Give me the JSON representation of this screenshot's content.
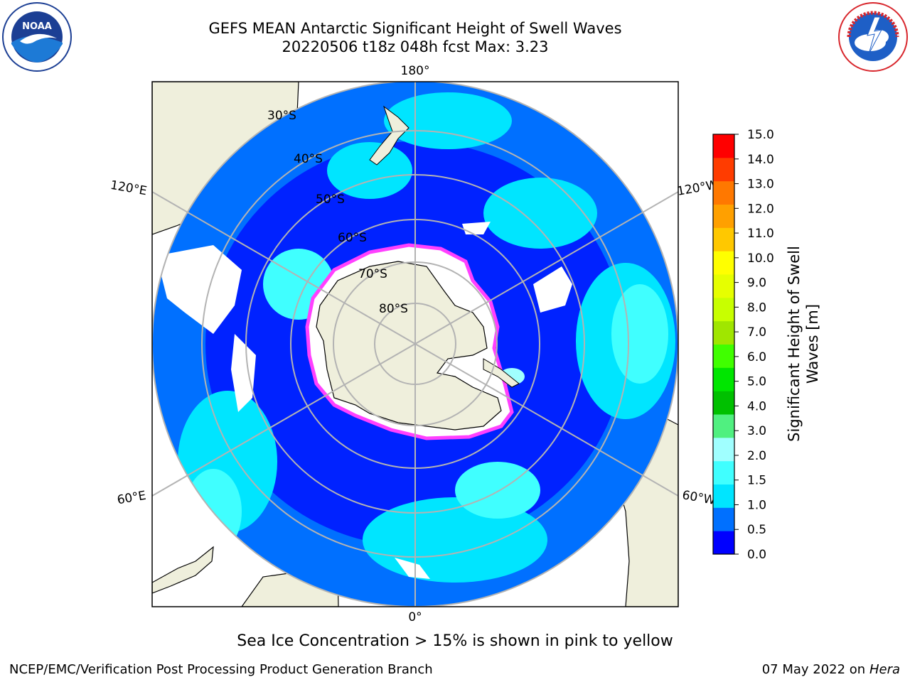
{
  "header": {
    "title": "GEFS MEAN Antarctic Significant Height of Swell Waves",
    "subtitle": "20220506 t18z 048h fcst   Max: 3.23"
  },
  "logos": {
    "left": "noaa-logo",
    "left_text": "NOAA",
    "right": "nws-logo",
    "right_text": "NATIONAL WEATHER SERVICE"
  },
  "map": {
    "projection": "south-polar-stereographic",
    "longitude_labels": [
      "180°",
      "120°E",
      "120°W",
      "60°E",
      "60°W",
      "0°"
    ],
    "latitude_labels": [
      "30°S",
      "40°S",
      "50°S",
      "60°S",
      "70°S",
      "80°S"
    ],
    "colors": {
      "land": "#efefdc",
      "ice_free_ocean": "#ffffff",
      "grid": "#b3b3b3",
      "coast": "#000000",
      "sea_ice_edge": "#ff40ff"
    }
  },
  "colorbar": {
    "label_line1": "Significant Height of Swell",
    "label_line2": "Waves [m]",
    "ticks": [
      "15.0",
      "14.0",
      "13.0",
      "12.0",
      "11.0",
      "10.0",
      "9.0",
      "8.0",
      "7.0",
      "6.0",
      "5.0",
      "4.0",
      "3.0",
      "2.0",
      "1.5",
      "1.0",
      "0.5",
      "0.0"
    ],
    "bin_colors": [
      "#0000ff",
      "#0070ff",
      "#00e5ff",
      "#40ffff",
      "#a0ffff",
      "#50f080",
      "#00c000",
      "#00e600",
      "#40ff00",
      "#a0e600",
      "#c8ff00",
      "#e6ff00",
      "#ffff00",
      "#ffc800",
      "#ffa000",
      "#ff7800",
      "#ff3c00",
      "#ff0000"
    ]
  },
  "caption": "Sea Ice Concentration > 15% is shown in pink to yellow",
  "footer": {
    "left": "NCEP/EMC/Verification Post Processing Product Generation Branch",
    "right_prefix": "07 May 2022 on",
    "right_host": "Hera"
  }
}
